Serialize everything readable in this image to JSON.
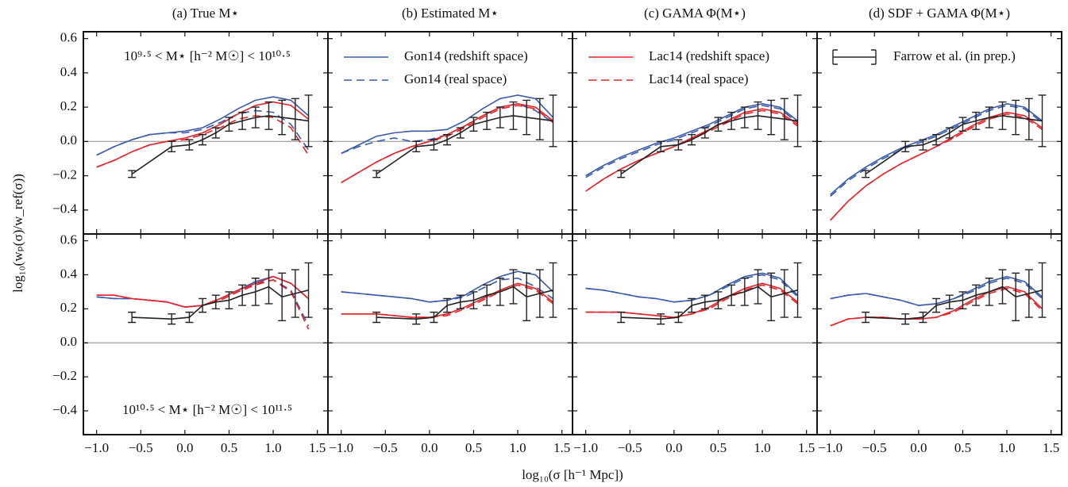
{
  "ylabel": "log₁₀(wₚ(σ)/w_ref(σ))",
  "xlabel": "log₁₀(σ [h⁻¹ Mpc])",
  "axes": {
    "xlim": [
      -1.15,
      1.62
    ],
    "ylim": [
      -0.54,
      0.64
    ],
    "xticks": [
      {
        "value": -1.0,
        "label": "−1.0"
      },
      {
        "value": -0.5,
        "label": "−0.5"
      },
      {
        "value": 0.0,
        "label": "0.0"
      },
      0.5,
      {
        "value": 1.0,
        "label": "1.0"
      },
      1.5
    ],
    "yticks": [
      {
        "value": -0.4,
        "label": "−0.4"
      },
      {
        "value": -0.2,
        "label": "−0.2"
      },
      {
        "value": 0.0,
        "label": "0.0"
      },
      0.2,
      0.4,
      0.6
    ]
  },
  "model_x": [
    -1.0,
    -0.8,
    -0.6,
    -0.4,
    -0.2,
    0.0,
    0.2,
    0.4,
    0.6,
    0.8,
    1.0,
    1.2,
    1.4
  ],
  "obs_x": [
    -0.6,
    -0.15,
    0.05,
    0.2,
    0.35,
    0.5,
    0.65,
    0.8,
    0.95,
    1.1,
    1.25,
    1.4
  ],
  "chart_data": [
    {
      "type": "line",
      "title": "(a) True M⋆",
      "annotation": "10⁹·⁵ < M⋆ [h⁻² M☉] < 10¹⁰·⁵",
      "series": [
        {
          "color": "#3a5bab",
          "dash": false,
          "values": [
            -0.08,
            -0.03,
            0.01,
            0.04,
            0.05,
            0.06,
            0.08,
            0.13,
            0.19,
            0.24,
            0.26,
            0.24,
            0.15
          ]
        },
        {
          "color": "#3a5bab",
          "dash": true,
          "values": [
            -0.08,
            -0.03,
            0.01,
            0.04,
            0.05,
            0.05,
            0.07,
            0.11,
            0.16,
            0.18,
            0.17,
            0.1,
            -0.05
          ]
        },
        {
          "color": "#e8242a",
          "dash": false,
          "values": [
            -0.15,
            -0.11,
            -0.06,
            -0.02,
            0.0,
            0.02,
            0.05,
            0.1,
            0.16,
            0.21,
            0.23,
            0.21,
            0.13
          ]
        },
        {
          "color": "#e8242a",
          "dash": true,
          "values": [
            -0.15,
            -0.11,
            -0.06,
            -0.02,
            0.0,
            0.01,
            0.04,
            0.08,
            0.13,
            0.15,
            0.14,
            0.08,
            -0.08
          ]
        }
      ],
      "observations": {
        "color": "#222222",
        "values": [
          -0.19,
          -0.03,
          -0.02,
          0.01,
          0.05,
          0.1,
          0.12,
          0.14,
          0.15,
          0.14,
          0.13,
          0.12
        ],
        "errors": [
          0.02,
          0.03,
          0.03,
          0.03,
          0.03,
          0.04,
          0.05,
          0.06,
          0.08,
          0.1,
          0.12,
          0.15
        ]
      }
    },
    {
      "type": "line",
      "title": "(b) Estimated M⋆",
      "legend": [
        {
          "name": "Gon14 (redshift space)",
          "color": "#3a5bab",
          "dash": false
        },
        {
          "name": "Gon14 (real space)",
          "color": "#3a5bab",
          "dash": true
        }
      ],
      "series": [
        {
          "color": "#3a5bab",
          "dash": false,
          "values": [
            -0.07,
            -0.02,
            0.03,
            0.05,
            0.06,
            0.06,
            0.07,
            0.12,
            0.19,
            0.25,
            0.27,
            0.25,
            0.14
          ]
        },
        {
          "color": "#3a5bab",
          "dash": true,
          "values": [
            -0.07,
            -0.03,
            0.0,
            0.02,
            0.0,
            0.01,
            0.04,
            0.09,
            0.15,
            0.2,
            0.22,
            0.18,
            0.11
          ]
        },
        {
          "color": "#e8242a",
          "dash": false,
          "values": [
            -0.24,
            -0.18,
            -0.12,
            -0.07,
            -0.03,
            0.0,
            0.04,
            0.09,
            0.15,
            0.2,
            0.22,
            0.2,
            0.12
          ]
        },
        {
          "color": "#e8242a",
          "dash": true,
          "values": [
            -0.24,
            -0.18,
            -0.12,
            -0.07,
            -0.03,
            0.0,
            0.03,
            0.08,
            0.14,
            0.19,
            0.21,
            0.19,
            0.11
          ]
        }
      ],
      "observations": {
        "color": "#222222",
        "values": [
          -0.19,
          -0.03,
          -0.02,
          0.01,
          0.05,
          0.1,
          0.12,
          0.14,
          0.15,
          0.14,
          0.13,
          0.12
        ],
        "errors": [
          0.02,
          0.03,
          0.03,
          0.03,
          0.03,
          0.04,
          0.05,
          0.06,
          0.08,
          0.1,
          0.12,
          0.15
        ]
      }
    },
    {
      "type": "line",
      "title": "(c) GAMA Φ(M⋆)",
      "legend": [
        {
          "name": "Lac14 (redshift space)",
          "color": "#e8242a",
          "dash": false
        },
        {
          "name": "Lac14 (real space)",
          "color": "#e8242a",
          "dash": true
        }
      ],
      "series": [
        {
          "color": "#3a5bab",
          "dash": false,
          "values": [
            -0.2,
            -0.14,
            -0.09,
            -0.05,
            -0.01,
            0.02,
            0.06,
            0.1,
            0.15,
            0.2,
            0.22,
            0.2,
            0.12
          ]
        },
        {
          "color": "#3a5bab",
          "dash": true,
          "values": [
            -0.21,
            -0.15,
            -0.1,
            -0.06,
            -0.02,
            0.01,
            0.05,
            0.09,
            0.14,
            0.19,
            0.21,
            0.19,
            0.11
          ]
        },
        {
          "color": "#e8242a",
          "dash": false,
          "values": [
            -0.29,
            -0.22,
            -0.16,
            -0.11,
            -0.07,
            -0.03,
            0.02,
            0.07,
            0.12,
            0.17,
            0.19,
            0.17,
            0.1
          ]
        },
        {
          "color": "#e8242a",
          "dash": true,
          "values": [
            -0.29,
            -0.22,
            -0.16,
            -0.11,
            -0.07,
            -0.03,
            0.02,
            0.06,
            0.11,
            0.16,
            0.18,
            0.16,
            0.09
          ]
        }
      ],
      "observations": {
        "color": "#222222",
        "values": [
          -0.19,
          -0.03,
          -0.02,
          0.01,
          0.05,
          0.1,
          0.12,
          0.14,
          0.15,
          0.14,
          0.13,
          0.12
        ],
        "errors": [
          0.02,
          0.03,
          0.03,
          0.03,
          0.03,
          0.04,
          0.05,
          0.06,
          0.08,
          0.1,
          0.12,
          0.15
        ]
      }
    },
    {
      "type": "line",
      "title": "(d) SDF + GAMA Φ(M⋆)",
      "legend": [
        {
          "name": "Farrow et al. (in prep.)",
          "color": "#222222",
          "errorbar": true
        }
      ],
      "series": [
        {
          "color": "#3a5bab",
          "dash": false,
          "values": [
            -0.31,
            -0.22,
            -0.15,
            -0.09,
            -0.04,
            0.0,
            0.04,
            0.09,
            0.14,
            0.19,
            0.22,
            0.2,
            0.12
          ]
        },
        {
          "color": "#3a5bab",
          "dash": true,
          "values": [
            -0.32,
            -0.23,
            -0.16,
            -0.1,
            -0.05,
            -0.01,
            0.03,
            0.08,
            0.13,
            0.18,
            0.21,
            0.19,
            0.11
          ]
        },
        {
          "color": "#e8242a",
          "dash": false,
          "values": [
            -0.46,
            -0.35,
            -0.26,
            -0.19,
            -0.13,
            -0.08,
            -0.03,
            0.03,
            0.09,
            0.14,
            0.17,
            0.15,
            0.08
          ]
        },
        {
          "color": "#e8242a",
          "dash": true,
          "values": [
            -0.46,
            -0.35,
            -0.26,
            -0.19,
            -0.13,
            -0.08,
            -0.03,
            0.02,
            0.08,
            0.13,
            0.16,
            0.14,
            0.07
          ]
        }
      ],
      "observations": {
        "color": "#222222",
        "values": [
          -0.19,
          -0.03,
          -0.02,
          0.01,
          0.05,
          0.1,
          0.12,
          0.14,
          0.15,
          0.14,
          0.13,
          0.12
        ],
        "errors": [
          0.02,
          0.03,
          0.03,
          0.03,
          0.03,
          0.04,
          0.05,
          0.06,
          0.08,
          0.1,
          0.12,
          0.15
        ]
      }
    },
    {
      "type": "line",
      "annotation": "10¹⁰·⁵ < M⋆ [h⁻² M☉] < 10¹¹·⁵",
      "series": [
        {
          "color": "#3a5bab",
          "dash": false,
          "values": [
            0.27,
            0.26,
            0.26,
            0.25,
            0.24,
            0.21,
            0.22,
            0.26,
            0.31,
            0.36,
            0.39,
            0.35,
            0.26
          ]
        },
        {
          "color": "#3a5bab",
          "dash": true,
          "values": [
            0.27,
            0.26,
            0.26,
            0.25,
            0.24,
            0.21,
            0.22,
            0.25,
            0.3,
            0.35,
            0.37,
            0.31,
            0.1
          ]
        },
        {
          "color": "#e8242a",
          "dash": false,
          "values": [
            0.28,
            0.28,
            0.26,
            0.25,
            0.24,
            0.21,
            0.22,
            0.26,
            0.31,
            0.35,
            0.39,
            0.35,
            0.26
          ]
        },
        {
          "color": "#e8242a",
          "dash": true,
          "values": [
            0.28,
            0.28,
            0.26,
            0.25,
            0.24,
            0.21,
            0.22,
            0.25,
            0.3,
            0.34,
            0.37,
            0.3,
            0.08
          ]
        }
      ],
      "observations": {
        "color": "#222222",
        "values": [
          0.15,
          0.14,
          0.15,
          0.22,
          0.24,
          0.25,
          0.28,
          0.3,
          0.33,
          0.27,
          0.29,
          0.31
        ],
        "errors": [
          0.03,
          0.03,
          0.03,
          0.04,
          0.04,
          0.05,
          0.06,
          0.08,
          0.1,
          0.14,
          0.14,
          0.16
        ]
      }
    },
    {
      "type": "line",
      "series": [
        {
          "color": "#3a5bab",
          "dash": false,
          "values": [
            0.3,
            0.29,
            0.28,
            0.27,
            0.26,
            0.24,
            0.25,
            0.28,
            0.34,
            0.39,
            0.42,
            0.4,
            0.3
          ]
        },
        {
          "color": "#3a5bab",
          "dash": true,
          "values": [
            0.3,
            0.29,
            0.28,
            0.27,
            0.26,
            0.24,
            0.25,
            0.27,
            0.32,
            0.37,
            0.38,
            0.33,
            0.26
          ]
        },
        {
          "color": "#e8242a",
          "dash": false,
          "values": [
            0.17,
            0.17,
            0.17,
            0.16,
            0.15,
            0.15,
            0.17,
            0.21,
            0.26,
            0.31,
            0.35,
            0.32,
            0.24
          ]
        },
        {
          "color": "#e8242a",
          "dash": true,
          "values": [
            0.17,
            0.17,
            0.17,
            0.16,
            0.15,
            0.15,
            0.16,
            0.2,
            0.25,
            0.3,
            0.34,
            0.31,
            0.23
          ]
        }
      ],
      "observations": {
        "color": "#222222",
        "values": [
          0.15,
          0.14,
          0.15,
          0.22,
          0.24,
          0.25,
          0.28,
          0.3,
          0.33,
          0.27,
          0.29,
          0.31
        ],
        "errors": [
          0.03,
          0.03,
          0.03,
          0.04,
          0.04,
          0.05,
          0.06,
          0.08,
          0.1,
          0.14,
          0.14,
          0.16
        ]
      }
    },
    {
      "type": "line",
      "series": [
        {
          "color": "#3a5bab",
          "dash": false,
          "values": [
            0.32,
            0.31,
            0.29,
            0.27,
            0.26,
            0.24,
            0.25,
            0.28,
            0.34,
            0.39,
            0.41,
            0.38,
            0.28
          ]
        },
        {
          "color": "#3a5bab",
          "dash": true,
          "values": [
            0.32,
            0.31,
            0.29,
            0.27,
            0.26,
            0.24,
            0.25,
            0.28,
            0.33,
            0.38,
            0.4,
            0.37,
            0.27
          ]
        },
        {
          "color": "#e8242a",
          "dash": false,
          "values": [
            0.18,
            0.18,
            0.18,
            0.17,
            0.16,
            0.15,
            0.17,
            0.21,
            0.27,
            0.32,
            0.35,
            0.32,
            0.24
          ]
        },
        {
          "color": "#e8242a",
          "dash": true,
          "values": [
            0.18,
            0.18,
            0.18,
            0.17,
            0.16,
            0.15,
            0.17,
            0.2,
            0.26,
            0.31,
            0.34,
            0.31,
            0.23
          ]
        }
      ],
      "observations": {
        "color": "#222222",
        "values": [
          0.15,
          0.14,
          0.15,
          0.22,
          0.24,
          0.25,
          0.28,
          0.3,
          0.33,
          0.27,
          0.29,
          0.31
        ],
        "errors": [
          0.03,
          0.03,
          0.03,
          0.04,
          0.04,
          0.05,
          0.06,
          0.08,
          0.1,
          0.14,
          0.14,
          0.16
        ]
      }
    },
    {
      "type": "line",
      "series": [
        {
          "color": "#3a5bab",
          "dash": false,
          "values": [
            0.26,
            0.28,
            0.29,
            0.27,
            0.25,
            0.22,
            0.23,
            0.26,
            0.31,
            0.36,
            0.39,
            0.36,
            0.27
          ]
        },
        {
          "color": "#3a5bab",
          "dash": true,
          "values": [
            0.26,
            0.28,
            0.29,
            0.27,
            0.25,
            0.22,
            0.23,
            0.26,
            0.3,
            0.35,
            0.38,
            0.35,
            0.26
          ]
        },
        {
          "color": "#e8242a",
          "dash": false,
          "values": [
            0.1,
            0.14,
            0.15,
            0.15,
            0.14,
            0.14,
            0.15,
            0.19,
            0.25,
            0.3,
            0.33,
            0.3,
            0.2
          ]
        },
        {
          "color": "#e8242a",
          "dash": true,
          "values": [
            0.1,
            0.14,
            0.15,
            0.15,
            0.14,
            0.14,
            0.15,
            0.18,
            0.24,
            0.29,
            0.32,
            0.29,
            0.19
          ]
        }
      ],
      "observations": {
        "color": "#222222",
        "values": [
          0.15,
          0.14,
          0.15,
          0.22,
          0.24,
          0.25,
          0.28,
          0.3,
          0.33,
          0.27,
          0.29,
          0.31
        ],
        "errors": [
          0.03,
          0.03,
          0.03,
          0.04,
          0.04,
          0.05,
          0.06,
          0.08,
          0.1,
          0.14,
          0.14,
          0.16
        ]
      }
    }
  ]
}
